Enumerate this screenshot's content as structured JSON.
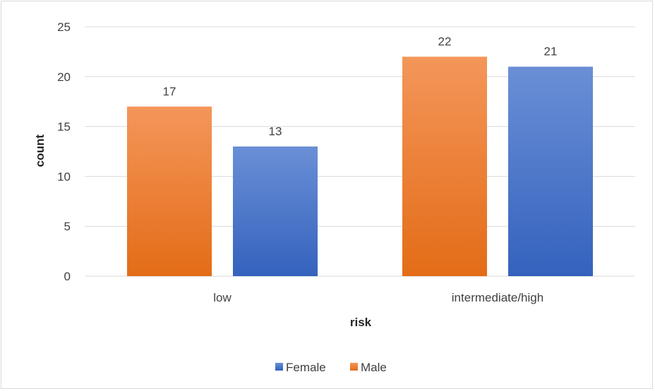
{
  "chart_data": {
    "type": "bar",
    "title": "",
    "xlabel": "risk",
    "ylabel": "count",
    "categories": [
      "low",
      "intermediate/high"
    ],
    "series": [
      {
        "name": "Male",
        "values": [
          17,
          22
        ],
        "color": "#ed7d31"
      },
      {
        "name": "Female",
        "values": [
          13,
          21
        ],
        "color": "#4472c4"
      }
    ],
    "ylim": [
      0,
      25
    ],
    "yticks": [
      0,
      5,
      10,
      15,
      20,
      25
    ],
    "grid": true,
    "legend": {
      "position": "bottom",
      "order": [
        "Female",
        "Male"
      ]
    },
    "data_labels": true
  }
}
